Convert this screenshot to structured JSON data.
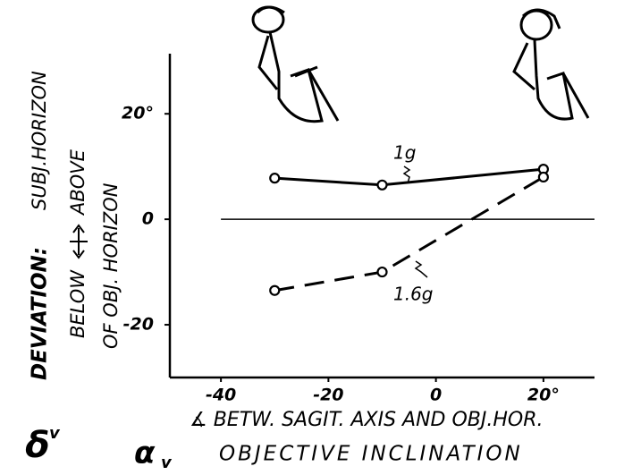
{
  "chart_data": {
    "type": "line",
    "x": [
      -30,
      -10,
      20
    ],
    "series": [
      {
        "name": "1g",
        "color": "#000000",
        "style": "solid",
        "values": [
          7.8,
          6.5,
          9.5
        ]
      },
      {
        "name": "1.6g",
        "color": "#000000",
        "style": "dashed",
        "values": [
          -13.5,
          -10,
          8
        ]
      }
    ],
    "xlim": [
      -49.5,
      29.5
    ],
    "ylim": [
      -30,
      31.4
    ],
    "xticks": [
      -40,
      -20,
      0,
      {
        "value": 20,
        "label": "20°"
      }
    ],
    "yticks": [
      -20,
      0,
      {
        "value": 20,
        "label": "20°"
      }
    ],
    "zero_line": true,
    "y_label": {
      "symbol": "δ",
      "symbol_sub": "v",
      "line1_bold": "DEVIATION:",
      "line1": "SUBJ.HORIZON",
      "below": "BELOW",
      "above": "ABOVE",
      "line3": "OF OBJ. HORIZON"
    },
    "x_label": {
      "line1": "∡ BETW. SAGIT. AXIS AND OBJ.HOR.",
      "symbol": "α",
      "symbol_sub": "v",
      "line2": "OBJECTIVE INCLINATION"
    }
  }
}
